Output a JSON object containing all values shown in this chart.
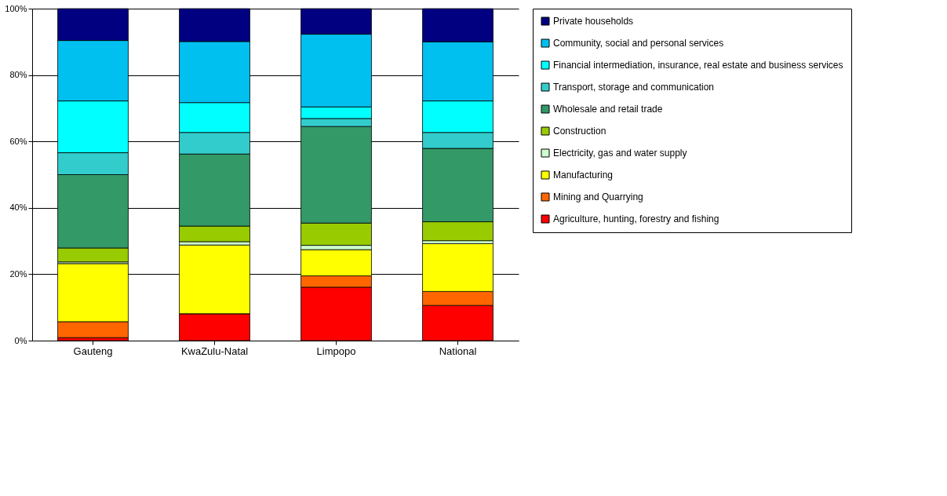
{
  "chart_data": {
    "type": "bar",
    "stacked": true,
    "categories": [
      "Gauteng",
      "KwaZulu-Natal",
      "Limpopo",
      "National"
    ],
    "ylim": [
      0,
      100
    ],
    "yticks": [
      {
        "value": 0,
        "label": "0%"
      },
      {
        "value": 20,
        "label": "20%"
      },
      {
        "value": 40,
        "label": "40%"
      },
      {
        "value": 60,
        "label": "60%"
      },
      {
        "value": 80,
        "label": "80%"
      },
      {
        "value": 100,
        "label": "100%"
      }
    ],
    "grid": "y",
    "legend": "right",
    "series": [
      {
        "name": "Agriculture, hunting, forestry and fishing",
        "color": "#ff0000",
        "values": [
          0.9,
          8.1,
          16.1,
          10.6
        ]
      },
      {
        "name": "Mining and Quarrying",
        "color": "#ff6600",
        "values": [
          4.8,
          0,
          3.4,
          4.2
        ]
      },
      {
        "name": "Manufacturing",
        "color": "#ffff00",
        "values": [
          17.5,
          20.7,
          7.9,
          14.4
        ]
      },
      {
        "name": "Electricity, gas and water supply",
        "color": "#ccffcc",
        "values": [
          0.5,
          1.0,
          1.3,
          0.9
        ]
      },
      {
        "name": "Construction",
        "color": "#99cc00",
        "values": [
          4.2,
          4.7,
          6.7,
          5.7
        ]
      },
      {
        "name": "Wholesale and retail trade",
        "color": "#339966",
        "values": [
          22.1,
          21.7,
          29.1,
          22.1
        ]
      },
      {
        "name": "Transport, storage and communication",
        "color": "#33cccc",
        "values": [
          6.6,
          6.5,
          2.4,
          4.8
        ]
      },
      {
        "name": "Financial intermediation, insurance, real estate and business services",
        "color": "#00ffff",
        "values": [
          15.6,
          9.0,
          3.5,
          9.5
        ]
      },
      {
        "name": "Community, social and personal services",
        "color": "#00c0f0",
        "values": [
          18.2,
          18.4,
          21.9,
          17.8
        ]
      },
      {
        "name": "Private households",
        "color": "#000080",
        "values": [
          9.6,
          9.9,
          7.7,
          10.0
        ]
      }
    ]
  }
}
